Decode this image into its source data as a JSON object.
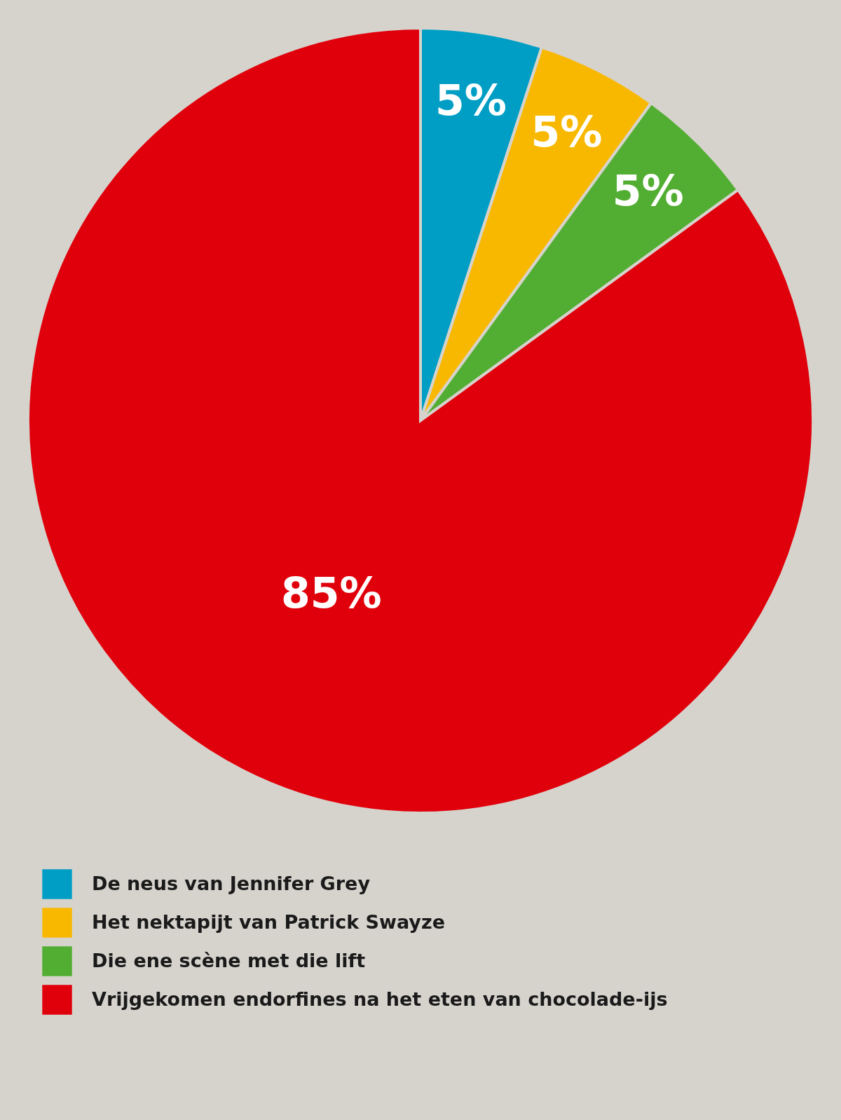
{
  "chart_data": {
    "type": "pie",
    "categories": [
      "De neus van Jennifer Grey",
      "Het nektapijt van Patrick Swayze",
      "Die ene scène met die lift",
      "Vrijgekomen endorfines na het eten van chocolade-ijs"
    ],
    "values": [
      5,
      5,
      5,
      85
    ],
    "colors": [
      "#009ec4",
      "#f9b800",
      "#52ae32",
      "#e0000b"
    ],
    "value_labels": [
      "5%",
      "5%",
      "5%",
      "85%"
    ],
    "legend": "bottom"
  }
}
